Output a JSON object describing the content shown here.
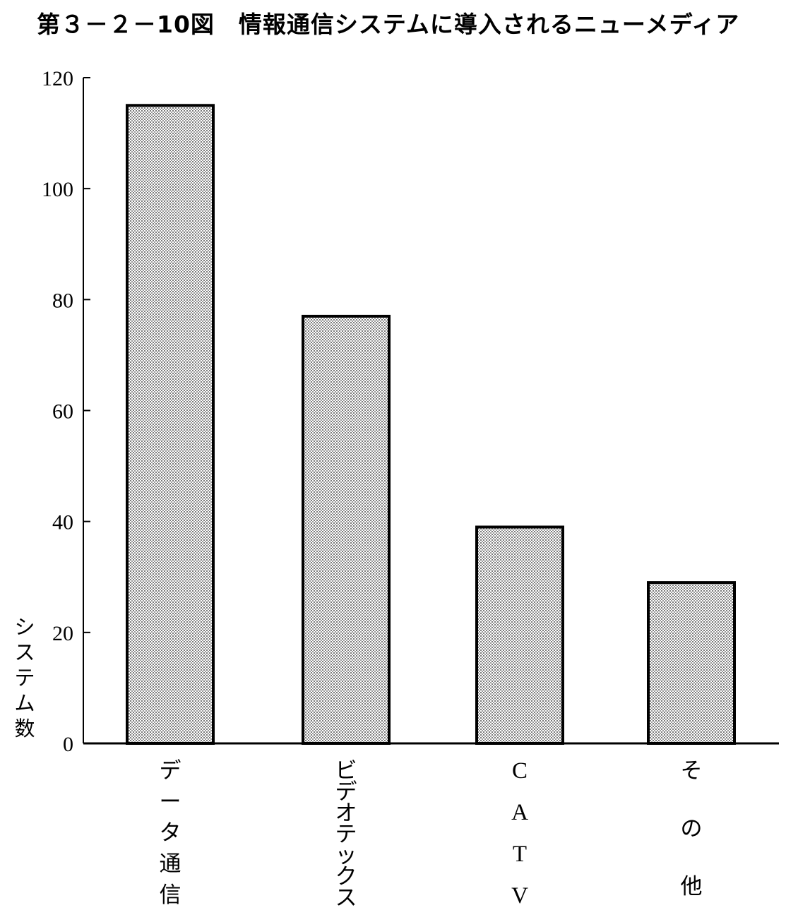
{
  "title": "第３－２－10図　情報通信システムに導入されるニューメディア",
  "chart_data": {
    "type": "bar",
    "categories": [
      "データ通信",
      "ビデオテックス",
      "CATV",
      "その他"
    ],
    "values": [
      115,
      77,
      39,
      29
    ],
    "ylabel": "システム数",
    "ylim": [
      0,
      120
    ],
    "yticks": [
      0,
      20,
      40,
      60,
      80,
      100,
      120
    ],
    "grid": false,
    "fill_pattern": "dotted-gray"
  }
}
